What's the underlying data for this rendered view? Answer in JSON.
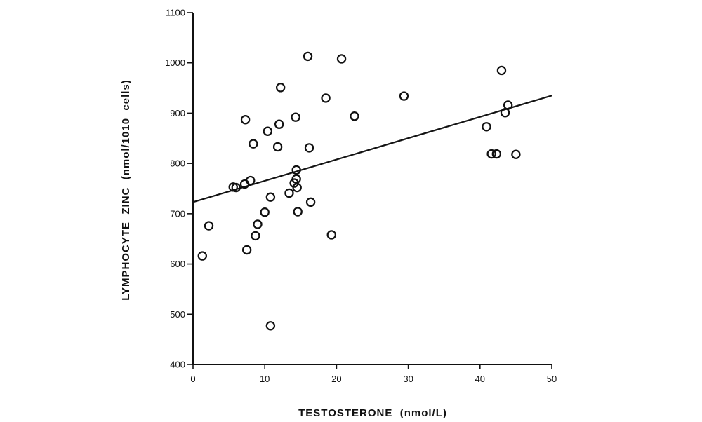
{
  "chart_data": {
    "type": "scatter",
    "xlabel": "TESTOSTERONE  (nmol/L)",
    "ylabel": "LYMPHOCYTE  ZINC  (nmol/1010  cells)",
    "xlim": [
      0,
      50
    ],
    "ylim": [
      400,
      1100
    ],
    "x_ticks": [
      "0",
      "10",
      "20",
      "30",
      "40",
      "50"
    ],
    "y_ticks": [
      "400",
      "500",
      "600",
      "700",
      "800",
      "900",
      "1000",
      "1100"
    ],
    "grid": false,
    "legend": "none",
    "marker": "open-circle",
    "points": [
      {
        "x": 1.3,
        "y": 616
      },
      {
        "x": 2.2,
        "y": 676
      },
      {
        "x": 5.6,
        "y": 753
      },
      {
        "x": 6.0,
        "y": 752
      },
      {
        "x": 7.2,
        "y": 759
      },
      {
        "x": 7.3,
        "y": 887
      },
      {
        "x": 7.5,
        "y": 628
      },
      {
        "x": 8.0,
        "y": 766
      },
      {
        "x": 8.4,
        "y": 839
      },
      {
        "x": 8.7,
        "y": 656
      },
      {
        "x": 9.0,
        "y": 679
      },
      {
        "x": 10.0,
        "y": 703
      },
      {
        "x": 10.4,
        "y": 864
      },
      {
        "x": 10.8,
        "y": 733
      },
      {
        "x": 10.8,
        "y": 477
      },
      {
        "x": 11.8,
        "y": 833
      },
      {
        "x": 12.0,
        "y": 878
      },
      {
        "x": 12.2,
        "y": 951
      },
      {
        "x": 13.4,
        "y": 741
      },
      {
        "x": 14.1,
        "y": 761
      },
      {
        "x": 14.3,
        "y": 892
      },
      {
        "x": 14.4,
        "y": 769
      },
      {
        "x": 14.4,
        "y": 787
      },
      {
        "x": 14.5,
        "y": 752
      },
      {
        "x": 14.6,
        "y": 704
      },
      {
        "x": 16.0,
        "y": 1013
      },
      {
        "x": 16.2,
        "y": 831
      },
      {
        "x": 16.4,
        "y": 723
      },
      {
        "x": 18.5,
        "y": 930
      },
      {
        "x": 19.3,
        "y": 658
      },
      {
        "x": 20.7,
        "y": 1008
      },
      {
        "x": 22.5,
        "y": 894
      },
      {
        "x": 29.4,
        "y": 934
      },
      {
        "x": 40.9,
        "y": 873
      },
      {
        "x": 41.6,
        "y": 819
      },
      {
        "x": 42.3,
        "y": 819
      },
      {
        "x": 43.0,
        "y": 985
      },
      {
        "x": 43.5,
        "y": 901
      },
      {
        "x": 43.9,
        "y": 916
      },
      {
        "x": 45.0,
        "y": 818
      }
    ],
    "regression_line": {
      "x": [
        0,
        50
      ],
      "y": [
        723,
        935
      ]
    },
    "colors": {
      "ink": "#111111",
      "background": "#ffffff"
    }
  }
}
